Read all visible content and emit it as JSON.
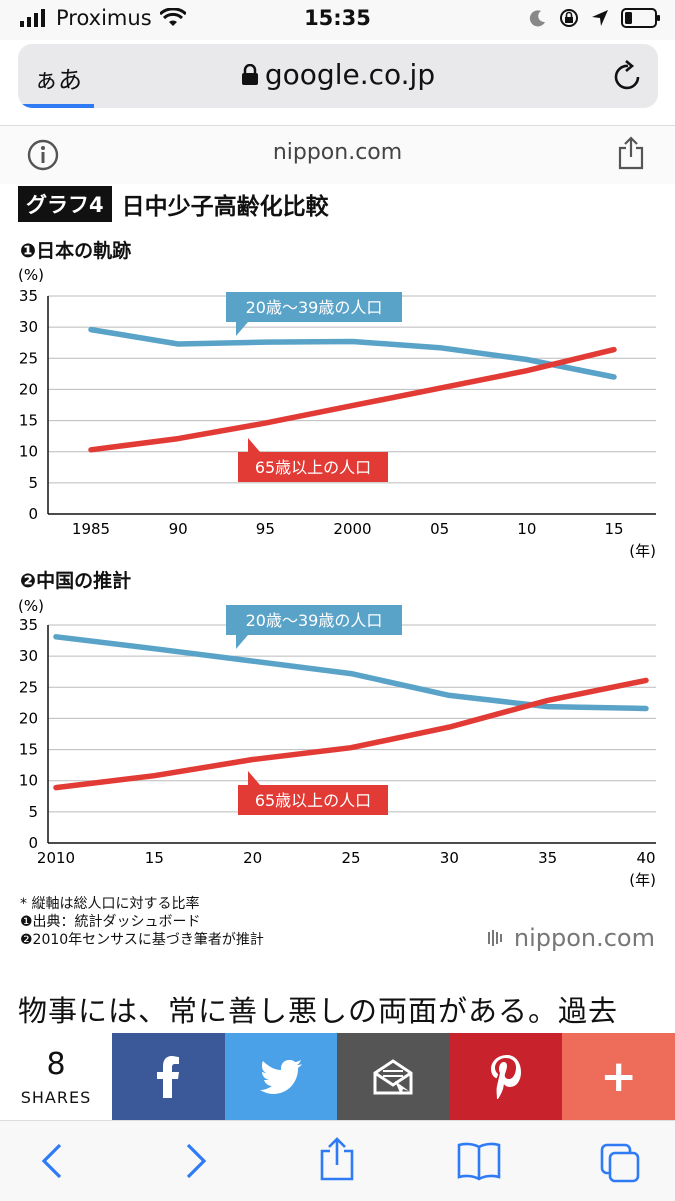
{
  "status": {
    "carrier": "Proximus",
    "time": "15:35"
  },
  "browser": {
    "aa_label": "ぁあ",
    "url": "google.co.jp",
    "site": "nippon.com"
  },
  "heading": {
    "badge": "グラフ4",
    "title": "日中少子高齢化比較"
  },
  "chart1": {
    "title": "❶日本の軌跡",
    "unit": "(%)",
    "xunit": "(年)",
    "label_young": "20歳〜39歳の人口",
    "label_old": "65歳以上の人口"
  },
  "chart2": {
    "title": "❷中国の推計",
    "unit": "(%)",
    "xunit": "(年)",
    "label_young": "20歳〜39歳の人口",
    "label_old": "65歳以上の人口"
  },
  "chart_data": [
    {
      "type": "line",
      "x_tick_labels": [
        "1985",
        "90",
        "95",
        "2000",
        "05",
        "10",
        "15"
      ],
      "x": [
        1985,
        1990,
        1995,
        2000,
        2005,
        2010,
        2015
      ],
      "ylim": [
        0,
        35
      ],
      "yticks": [
        0,
        5,
        10,
        15,
        20,
        25,
        30,
        35
      ],
      "series": [
        {
          "name": "20歳〜39歳の人口",
          "color": "#5aa3c8",
          "values": [
            29.6,
            27.3,
            27.6,
            27.7,
            26.7,
            24.8,
            22.0
          ]
        },
        {
          "name": "65歳以上の人口",
          "color": "#e23a35",
          "values": [
            10.3,
            12.1,
            14.6,
            17.4,
            20.2,
            23.0,
            26.4
          ]
        }
      ]
    },
    {
      "type": "line",
      "x_tick_labels": [
        "2010",
        "15",
        "20",
        "25",
        "30",
        "35",
        "40"
      ],
      "x": [
        2010,
        2015,
        2020,
        2025,
        2030,
        2035,
        2040
      ],
      "ylim": [
        0,
        35
      ],
      "yticks": [
        0,
        5,
        10,
        15,
        20,
        25,
        30,
        35
      ],
      "series": [
        {
          "name": "20歳〜39歳の人口",
          "color": "#5aa3c8",
          "values": [
            33.1,
            31.2,
            29.2,
            27.2,
            23.7,
            21.9,
            21.6
          ]
        },
        {
          "name": "65歳以上の人口",
          "color": "#e23a35",
          "values": [
            8.9,
            10.8,
            13.4,
            15.3,
            18.6,
            22.9,
            26.1
          ]
        }
      ]
    }
  ],
  "notes": {
    "line1": "* 縦軸は総人口に対する比率",
    "line2": "❶出典：統計ダッシュボード",
    "line3": "❷2010年センサスに基づき筆者が推計",
    "brand": "nippon.com"
  },
  "article": {
    "text": "物事には、常に善し悪しの両面がある。過去"
  },
  "sharebar": {
    "count": "8",
    "label": "SHARES",
    "plus": "+",
    "colors": {
      "facebook": "#3b5998",
      "twitter": "#4aa1e8",
      "email": "#555555",
      "pinterest": "#c8232c",
      "more": "#ee6c5a"
    }
  }
}
